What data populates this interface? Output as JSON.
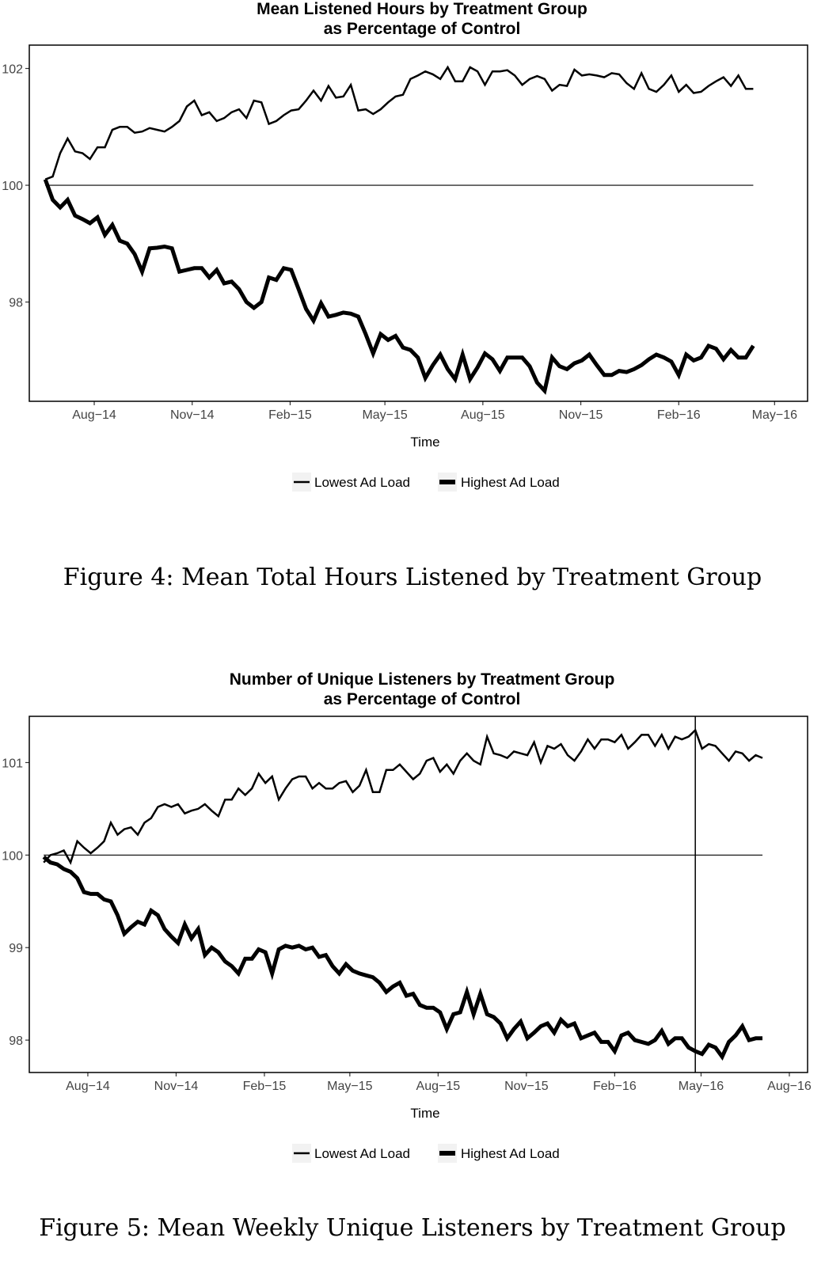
{
  "figures": [
    {
      "caption": "Figure 4: Mean Total Hours Listened by Treatment Group",
      "chart_data": {
        "type": "line",
        "title": "Mean Listened Hours by Treatment Group",
        "subtitle": "as Percentage of Control",
        "xlabel": "Time",
        "ylabel": "",
        "x_tick_labels": [
          "Aug−14",
          "Nov−14",
          "Feb−15",
          "May−15",
          "Aug−15",
          "Nov−15",
          "Feb−16",
          "May−16"
        ],
        "y_ticks": [
          98,
          100,
          102
        ],
        "ylim": [
          96.3,
          102.4
        ],
        "x_start": "2014-06-16",
        "x_step_weeks": 1,
        "reference_line": 100,
        "legend_position": "bottom",
        "grid": false,
        "series": [
          {
            "name": "Lowest Ad Load",
            "line": "thin",
            "values": [
              100.1,
              100.15,
              100.55,
              100.8,
              100.58,
              100.55,
              100.45,
              100.65,
              100.65,
              100.95,
              101.0,
              101.0,
              100.9,
              100.92,
              100.98,
              100.95,
              100.92,
              101.0,
              101.1,
              101.35,
              101.45,
              101.2,
              101.25,
              101.1,
              101.15,
              101.25,
              101.3,
              101.15,
              101.45,
              101.42,
              101.05,
              101.1,
              101.2,
              101.28,
              101.3,
              101.45,
              101.62,
              101.45,
              101.7,
              101.5,
              101.52,
              101.72,
              101.28,
              101.3,
              101.22,
              101.3,
              101.42,
              101.52,
              101.55,
              101.82,
              101.88,
              101.95,
              101.9,
              101.82,
              102.02,
              101.78,
              101.78,
              102.02,
              101.95,
              101.72,
              101.95,
              101.95,
              101.97,
              101.88,
              101.72,
              101.82,
              101.87,
              101.82,
              101.62,
              101.72,
              101.7,
              101.98,
              101.88,
              101.9,
              101.88,
              101.85,
              101.92,
              101.9,
              101.75,
              101.65,
              101.92,
              101.65,
              101.6,
              101.72,
              101.88,
              101.6,
              101.72,
              101.58,
              101.6,
              101.7,
              101.78,
              101.85,
              101.7,
              101.88,
              101.65,
              101.65
            ]
          },
          {
            "name": "Highest Ad Load",
            "line": "thick",
            "values": [
              100.1,
              99.75,
              99.62,
              99.75,
              99.48,
              99.42,
              99.35,
              99.45,
              99.15,
              99.32,
              99.05,
              99.0,
              98.82,
              98.52,
              98.92,
              98.93,
              98.95,
              98.92,
              98.52,
              98.55,
              98.58,
              98.58,
              98.42,
              98.55,
              98.32,
              98.35,
              98.22,
              98.0,
              97.9,
              98.0,
              98.42,
              98.38,
              98.58,
              98.55,
              98.22,
              97.88,
              97.68,
              97.98,
              97.75,
              97.78,
              97.82,
              97.8,
              97.75,
              97.45,
              97.12,
              97.45,
              97.35,
              97.42,
              97.22,
              97.18,
              97.05,
              96.7,
              96.92,
              97.1,
              96.85,
              96.68,
              97.1,
              96.68,
              96.88,
              97.12,
              97.02,
              96.82,
              97.05,
              97.05,
              97.05,
              96.9,
              96.62,
              96.48,
              97.05,
              96.9,
              96.85,
              96.95,
              97.0,
              97.1,
              96.92,
              96.75,
              96.75,
              96.82,
              96.8,
              96.85,
              96.92,
              97.02,
              97.1,
              97.05,
              96.98,
              96.75,
              97.1,
              97.0,
              97.05,
              97.25,
              97.2,
              97.02,
              97.18,
              97.05,
              97.05,
              97.25
            ]
          }
        ]
      }
    },
    {
      "caption": "Figure 5: Mean Weekly Unique Listeners by Treatment Group",
      "chart_data": {
        "type": "line",
        "title": "Number of Unique Listeners by Treatment Group",
        "subtitle": "as Percentage of Control",
        "xlabel": "Time",
        "ylabel": "",
        "x_tick_labels": [
          "Aug−14",
          "Nov−14",
          "Feb−15",
          "May−15",
          "Aug−15",
          "Nov−15",
          "Feb−16",
          "May−16",
          "Aug−16"
        ],
        "y_ticks": [
          98,
          99,
          100,
          101
        ],
        "ylim": [
          97.65,
          101.5
        ],
        "x_start": "2014-06-16",
        "x_step_weeks": 1,
        "reference_line": 100,
        "vertical_marker": "2016-04-25",
        "legend_position": "bottom",
        "grid": false,
        "series": [
          {
            "name": "Lowest Ad Load",
            "line": "thin",
            "values": [
              99.92,
              100.0,
              100.02,
              100.05,
              99.92,
              100.15,
              100.08,
              100.02,
              100.08,
              100.15,
              100.35,
              100.22,
              100.28,
              100.3,
              100.22,
              100.35,
              100.4,
              100.52,
              100.55,
              100.52,
              100.55,
              100.45,
              100.48,
              100.5,
              100.55,
              100.48,
              100.42,
              100.6,
              100.6,
              100.72,
              100.65,
              100.72,
              100.88,
              100.78,
              100.85,
              100.6,
              100.72,
              100.82,
              100.85,
              100.85,
              100.72,
              100.78,
              100.72,
              100.72,
              100.78,
              100.8,
              100.68,
              100.75,
              100.92,
              100.68,
              100.68,
              100.92,
              100.92,
              100.98,
              100.9,
              100.82,
              100.88,
              101.02,
              101.05,
              100.9,
              100.98,
              100.88,
              101.02,
              101.1,
              101.02,
              100.98,
              101.28,
              101.1,
              101.08,
              101.05,
              101.12,
              101.1,
              101.08,
              101.22,
              101.0,
              101.18,
              101.15,
              101.2,
              101.08,
              101.02,
              101.12,
              101.25,
              101.15,
              101.25,
              101.25,
              101.22,
              101.3,
              101.15,
              101.22,
              101.3,
              101.3,
              101.18,
              101.3,
              101.15,
              101.28,
              101.25,
              101.28,
              101.35,
              101.15,
              101.2,
              101.18,
              101.1,
              101.02,
              101.12,
              101.1,
              101.02,
              101.08,
              101.05
            ]
          },
          {
            "name": "Highest Ad Load",
            "line": "thick",
            "values": [
              99.98,
              99.92,
              99.9,
              99.85,
              99.82,
              99.75,
              99.6,
              99.58,
              99.58,
              99.52,
              99.5,
              99.35,
              99.15,
              99.22,
              99.28,
              99.25,
              99.4,
              99.35,
              99.2,
              99.12,
              99.05,
              99.25,
              99.1,
              99.2,
              98.92,
              99.0,
              98.95,
              98.85,
              98.8,
              98.72,
              98.88,
              98.88,
              98.98,
              98.95,
              98.72,
              98.98,
              99.02,
              99.0,
              99.02,
              98.98,
              99.0,
              98.9,
              98.92,
              98.8,
              98.72,
              98.82,
              98.75,
              98.72,
              98.7,
              98.68,
              98.62,
              98.52,
              98.58,
              98.62,
              98.48,
              98.5,
              98.38,
              98.35,
              98.35,
              98.3,
              98.12,
              98.28,
              98.3,
              98.52,
              98.28,
              98.5,
              98.28,
              98.25,
              98.18,
              98.02,
              98.12,
              98.2,
              98.02,
              98.08,
              98.15,
              98.18,
              98.08,
              98.22,
              98.15,
              98.18,
              98.02,
              98.05,
              98.08,
              97.98,
              97.98,
              97.88,
              98.05,
              98.08,
              98.0,
              97.98,
              97.96,
              98.0,
              98.1,
              97.96,
              98.02,
              98.02,
              97.92,
              97.88,
              97.85,
              97.95,
              97.92,
              97.82,
              97.98,
              98.05,
              98.15,
              98.0,
              98.02,
              98.02
            ]
          }
        ]
      }
    }
  ]
}
